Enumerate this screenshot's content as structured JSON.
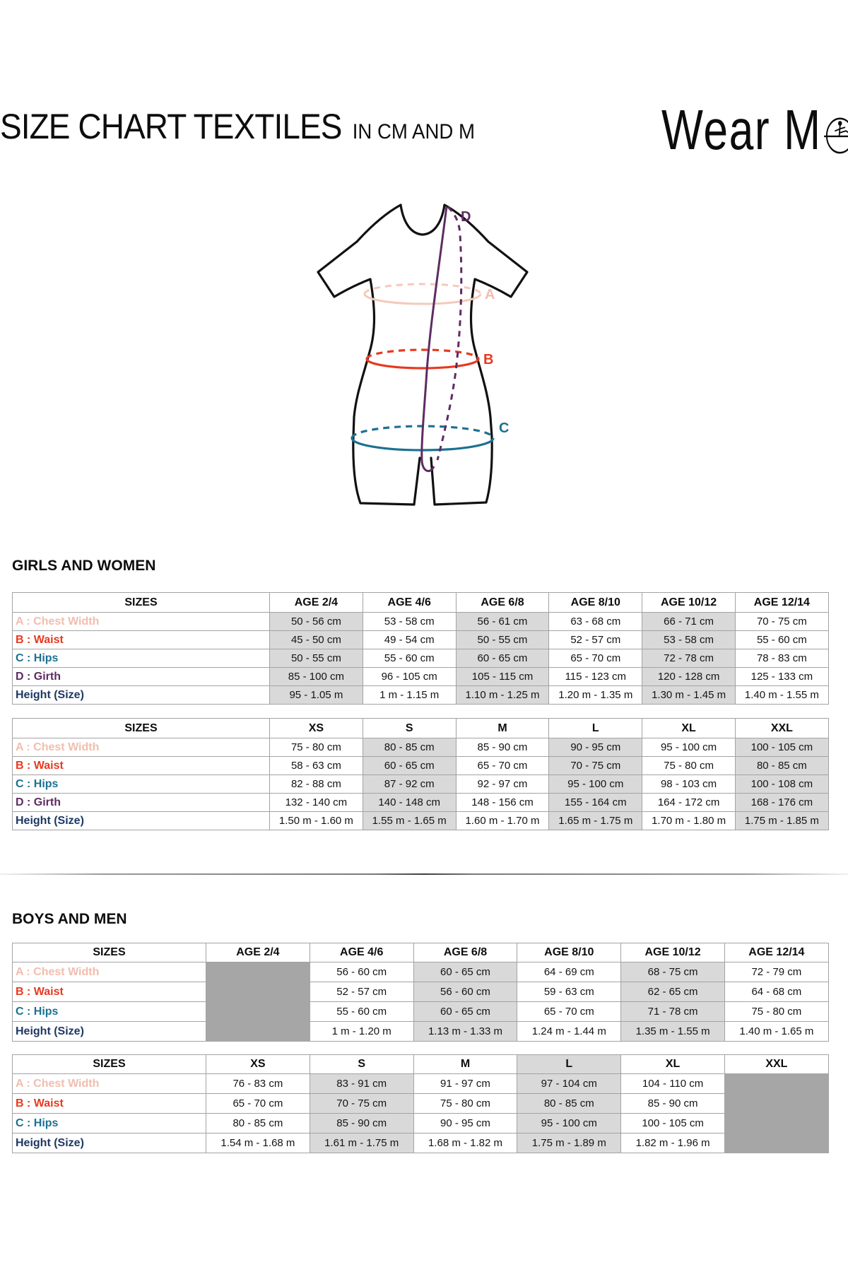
{
  "page": {
    "title": "SIZE CHART TEXTILES",
    "title_suffix": "IN CM AND M",
    "brand": {
      "part1": "Wear M",
      "part2": "i",
      "emblem": "dancer-circle-icon"
    }
  },
  "colors": {
    "chest": "#F2BDAD",
    "waist": "#E8391F",
    "hips": "#1C7191",
    "girth": "#5E2B62",
    "height": "#1F3864",
    "figure_outline": "#111111",
    "ellipse_chest": "#F5C9BA",
    "shade": "#D9D9D9",
    "block": "#A6A6A6"
  },
  "diagram": {
    "labels": {
      "a": "A",
      "b": "B",
      "c": "C",
      "d": "D"
    }
  },
  "sections": [
    {
      "heading": "GIRLS AND WOMEN"
    },
    {
      "heading": "BOYS AND MEN"
    }
  ],
  "tables": [
    {
      "section": 0,
      "columns": [
        "SIZES",
        "AGE 2/4",
        "AGE 4/6",
        "AGE 6/8",
        "AGE 8/10",
        "AGE 10/12",
        "AGE 12/14"
      ],
      "shaded_cols": [
        1,
        3,
        5
      ],
      "header_shaded_cols": [],
      "rows": [
        {
          "label": "A : Chest Width",
          "color": "chest",
          "values": [
            "50 - 56 cm",
            "53 - 58 cm",
            "56 - 61 cm",
            "63 - 68 cm",
            "66 - 71 cm",
            "70 - 75 cm"
          ]
        },
        {
          "label": "B : Waist",
          "color": "waist",
          "values": [
            "45 - 50 cm",
            "49 - 54 cm",
            "50 - 55 cm",
            "52 - 57 cm",
            "53 - 58 cm",
            "55 - 60 cm"
          ]
        },
        {
          "label": "C : Hips",
          "color": "hips",
          "values": [
            "50 - 55 cm",
            "55 - 60 cm",
            "60 - 65 cm",
            "65 - 70 cm",
            "72 - 78 cm",
            "78 - 83 cm"
          ]
        },
        {
          "label": "D : Girth",
          "color": "girth",
          "values": [
            "85 - 100 cm",
            "96 - 105 cm",
            "105 - 115 cm",
            "115 - 123 cm",
            "120 - 128 cm",
            "125 - 133 cm"
          ]
        },
        {
          "label": "Height (Size)",
          "color": "height",
          "values": [
            "95 - 1.05 m",
            "1 m - 1.15 m",
            "1.10 m - 1.25 m",
            "1.20 m - 1.35 m",
            "1.30 m - 1.45 m",
            "1.40 m - 1.55 m"
          ]
        }
      ]
    },
    {
      "section": 0,
      "columns": [
        "SIZES",
        "XS",
        "S",
        "M",
        "L",
        "XL",
        "XXL"
      ],
      "shaded_cols": [
        2,
        4,
        6
      ],
      "header_shaded_cols": [],
      "rows": [
        {
          "label": "A : Chest Width",
          "color": "chest",
          "values": [
            "75 - 80 cm",
            "80 - 85 cm",
            "85 - 90 cm",
            "90 - 95 cm",
            "95 - 100 cm",
            "100 - 105 cm"
          ]
        },
        {
          "label": "B : Waist",
          "color": "waist",
          "values": [
            "58 - 63 cm",
            "60 - 65 cm",
            "65 - 70 cm",
            "70 - 75 cm",
            "75 - 80 cm",
            "80 - 85 cm"
          ]
        },
        {
          "label": "C : Hips",
          "color": "hips",
          "values": [
            "82 - 88 cm",
            "87 - 92 cm",
            "92 - 97 cm",
            "95 - 100 cm",
            "98 - 103 cm",
            "100 - 108 cm"
          ]
        },
        {
          "label": "D : Girth",
          "color": "girth",
          "values": [
            "132 - 140 cm",
            "140 - 148 cm",
            "148 - 156 cm",
            "155 - 164 cm",
            "164 - 172 cm",
            "168 - 176 cm"
          ]
        },
        {
          "label": "Height (Size)",
          "color": "height",
          "values": [
            "1.50 m - 1.60 m",
            "1.55 m - 1.65 m",
            "1.60 m - 1.70 m",
            "1.65 m - 1.75 m",
            "1.70 m - 1.80 m",
            "1.75 m - 1.85 m"
          ]
        }
      ]
    },
    {
      "section": 1,
      "columns": [
        "SIZES",
        "AGE 2/4",
        "AGE 4/6",
        "AGE 6/8",
        "AGE 8/10",
        "AGE 10/12",
        "AGE 12/14"
      ],
      "shaded_cols": [
        3,
        5
      ],
      "header_shaded_cols": [],
      "rows": [
        {
          "label": "A : Chest Width",
          "color": "chest",
          "values": [
            null,
            "56 - 60 cm",
            "60 - 65 cm",
            "64 - 69 cm",
            "68 - 75 cm",
            "72 - 79 cm"
          ]
        },
        {
          "label": "B : Waist",
          "color": "waist",
          "values": [
            null,
            "52 - 57 cm",
            "56 - 60 cm",
            "59 - 63 cm",
            "62 - 65 cm",
            "64 - 68 cm"
          ]
        },
        {
          "label": "C : Hips",
          "color": "hips",
          "values": [
            null,
            "55 - 60 cm",
            "60 - 65 cm",
            "65 - 70 cm",
            "71 - 78 cm",
            "75 - 80 cm"
          ]
        },
        {
          "label": "Height (Size)",
          "color": "height",
          "values": [
            null,
            "1 m - 1.20 m",
            "1.13 m - 1.33 m",
            "1.24 m - 1.44 m",
            "1.35 m - 1.55 m",
            "1.40 m - 1.65 m"
          ]
        }
      ]
    },
    {
      "section": 1,
      "columns": [
        "SIZES",
        "XS",
        "S",
        "M",
        "L",
        "XL",
        "XXL"
      ],
      "shaded_cols": [
        2,
        4
      ],
      "header_shaded_cols": [
        4
      ],
      "rows": [
        {
          "label": "A : Chest Width",
          "color": "chest",
          "values": [
            "76 - 83 cm",
            "83 - 91 cm",
            "91 - 97 cm",
            "97 - 104 cm",
            "104 - 110 cm",
            null
          ]
        },
        {
          "label": "B : Waist",
          "color": "waist",
          "values": [
            "65 - 70 cm",
            "70 - 75 cm",
            "75 - 80 cm",
            "80 - 85 cm",
            "85 - 90 cm",
            null
          ]
        },
        {
          "label": "C : Hips",
          "color": "hips",
          "values": [
            "80 - 85 cm",
            "85 - 90 cm",
            "90 - 95 cm",
            "95 - 100 cm",
            "100 - 105 cm",
            null
          ]
        },
        {
          "label": "Height (Size)",
          "color": "height",
          "values": [
            "1.54 m - 1.68 m",
            "1.61 m - 1.75 m",
            "1.68 m - 1.82 m",
            "1.75 m - 1.89 m",
            "1.82 m - 1.96 m",
            null
          ]
        }
      ]
    }
  ]
}
